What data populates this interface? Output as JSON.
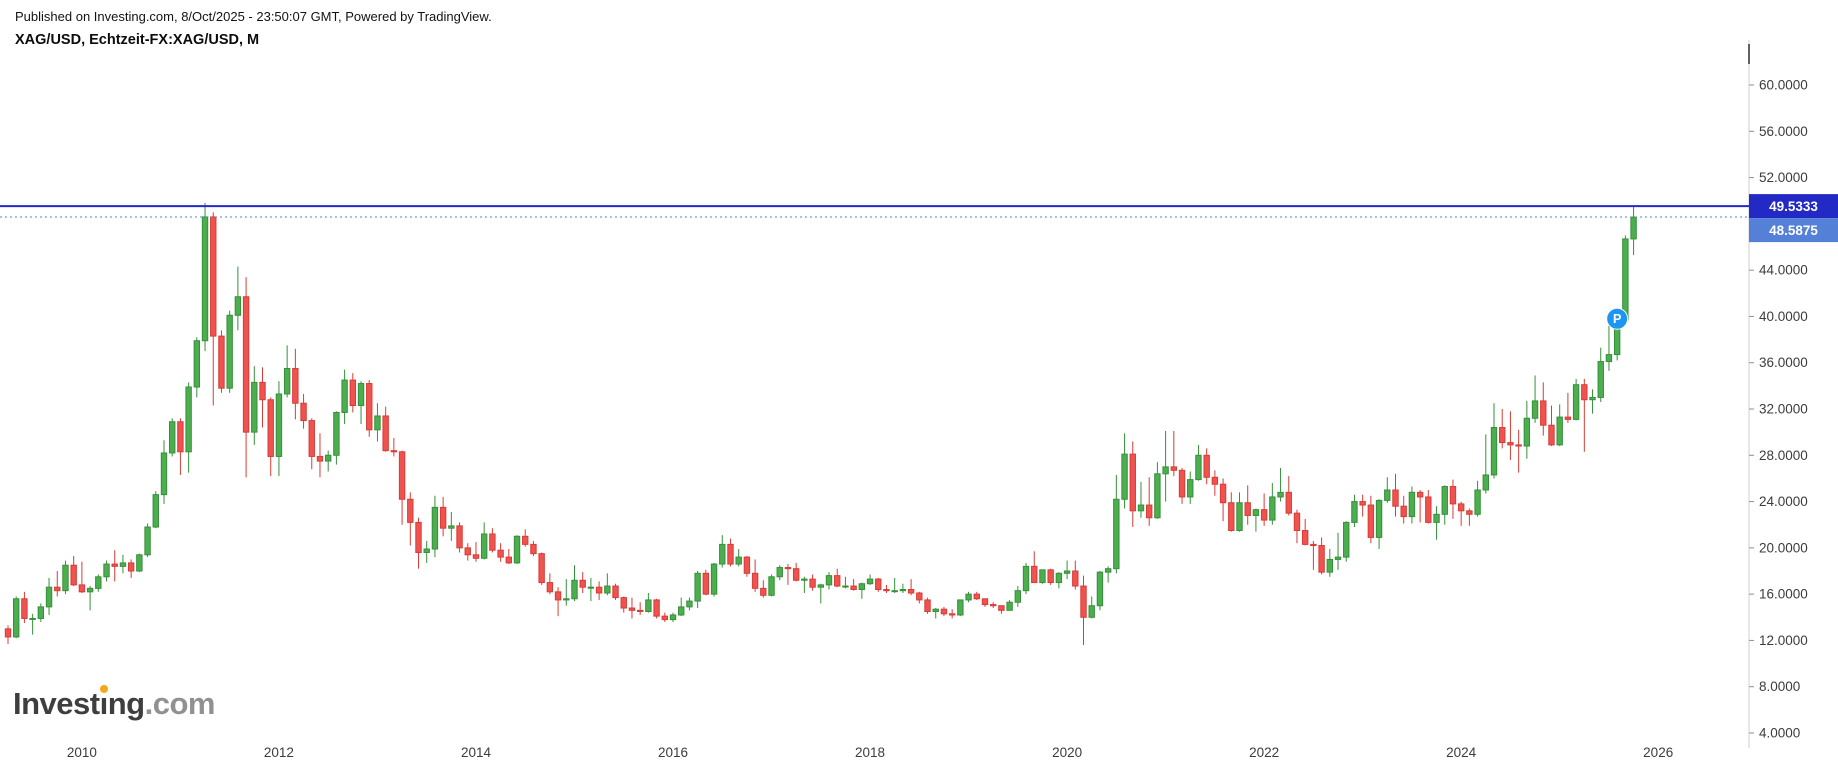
{
  "header": {
    "published_line": "Published on Investing.com, 8/Oct/2025 - 23:50:07 GMT, Powered by TradingView.",
    "symbol_line": "XAG/USD, Echtzeit-FX:XAG/USD, M"
  },
  "watermark": {
    "brand_pre": "Invest",
    "brand_i": "ı",
    "brand_post": "ng",
    "suffix": ".com",
    "dot_color": "#f7a61b"
  },
  "chart_data": {
    "type": "candlestick",
    "symbol": "XAG/USD",
    "feed": "Echtzeit-FX:XAG/USD",
    "timeframe": "M",
    "grid": false,
    "ylim": [
      4,
      62
    ],
    "y_ticks": [
      60,
      56,
      52,
      48,
      44,
      40,
      36,
      32,
      28,
      24,
      20,
      16,
      12,
      8,
      4
    ],
    "y_tick_decimals": 4,
    "x_tick_labels": [
      "2010",
      "2012",
      "2014",
      "2016",
      "2018",
      "2020",
      "2022",
      "2024",
      "2026"
    ],
    "up_color": "#4cae4f",
    "up_border": "#35903a",
    "down_color": "#ef5350",
    "down_border": "#d73c36",
    "axis_text_color": "#3c3c3c",
    "price_line": {
      "value": 49.5333,
      "label": "49.5333",
      "color": "#2329c5"
    },
    "current_price": {
      "value": 48.5875,
      "label": "48.5875",
      "color": "#5480d8"
    },
    "marker": {
      "label": "P",
      "month": "2025-08",
      "price": 39.8,
      "color": "#1e96f0"
    },
    "columns": [
      "month",
      "open",
      "high",
      "low",
      "close"
    ],
    "candles": [
      [
        "2009-04",
        13.0,
        13.3,
        11.7,
        12.3
      ],
      [
        "2009-05",
        12.3,
        15.8,
        12.2,
        15.6
      ],
      [
        "2009-06",
        15.6,
        16.2,
        13.5,
        13.9
      ],
      [
        "2009-07",
        13.9,
        14.3,
        12.5,
        13.9
      ],
      [
        "2009-08",
        13.9,
        15.2,
        13.6,
        14.9
      ],
      [
        "2009-09",
        14.9,
        17.4,
        14.2,
        16.6
      ],
      [
        "2009-10",
        16.6,
        18.0,
        15.8,
        16.3
      ],
      [
        "2009-11",
        16.3,
        18.9,
        16.0,
        18.5
      ],
      [
        "2009-12",
        18.5,
        19.3,
        16.7,
        16.8
      ],
      [
        "2010-01",
        16.8,
        18.8,
        16.1,
        16.2
      ],
      [
        "2010-02",
        16.2,
        16.7,
        14.6,
        16.5
      ],
      [
        "2010-03",
        16.5,
        17.7,
        16.2,
        17.5
      ],
      [
        "2010-04",
        17.5,
        18.9,
        17.1,
        18.6
      ],
      [
        "2010-05",
        18.6,
        19.8,
        17.1,
        18.4
      ],
      [
        "2010-06",
        18.4,
        19.4,
        17.8,
        18.7
      ],
      [
        "2010-07",
        18.7,
        19.0,
        17.4,
        18.0
      ],
      [
        "2010-08",
        18.0,
        19.5,
        17.9,
        19.4
      ],
      [
        "2010-09",
        19.4,
        22.1,
        19.2,
        21.8
      ],
      [
        "2010-10",
        21.8,
        24.9,
        21.7,
        24.6
      ],
      [
        "2010-11",
        24.6,
        29.3,
        23.8,
        28.2
      ],
      [
        "2010-12",
        28.2,
        31.2,
        27.9,
        30.9
      ],
      [
        "2011-01",
        30.9,
        31.2,
        26.3,
        28.3
      ],
      [
        "2011-02",
        28.3,
        34.3,
        26.5,
        33.9
      ],
      [
        "2011-03",
        33.9,
        38.2,
        33.0,
        37.9
      ],
      [
        "2011-04",
        37.9,
        49.8,
        37.0,
        48.6
      ],
      [
        "2011-05",
        48.6,
        49.0,
        32.3,
        38.3
      ],
      [
        "2011-06",
        38.3,
        38.8,
        33.4,
        33.8
      ],
      [
        "2011-07",
        33.8,
        40.5,
        33.4,
        40.1
      ],
      [
        "2011-08",
        40.1,
        44.3,
        38.8,
        41.7
      ],
      [
        "2011-09",
        41.7,
        43.4,
        26.1,
        30.0
      ],
      [
        "2011-10",
        30.0,
        35.7,
        28.9,
        34.3
      ],
      [
        "2011-11",
        34.3,
        35.6,
        30.4,
        32.8
      ],
      [
        "2011-12",
        32.8,
        33.0,
        26.2,
        27.9
      ],
      [
        "2012-01",
        27.9,
        34.4,
        26.2,
        33.3
      ],
      [
        "2012-02",
        33.3,
        37.5,
        33.0,
        35.5
      ],
      [
        "2012-03",
        35.5,
        37.2,
        31.1,
        32.5
      ],
      [
        "2012-04",
        32.5,
        33.3,
        30.3,
        31.0
      ],
      [
        "2012-05",
        31.0,
        31.2,
        26.8,
        27.9
      ],
      [
        "2012-06",
        27.9,
        29.9,
        26.1,
        27.5
      ],
      [
        "2012-07",
        27.5,
        28.4,
        26.6,
        28.0
      ],
      [
        "2012-08",
        28.0,
        31.8,
        27.2,
        31.7
      ],
      [
        "2012-09",
        31.7,
        35.4,
        30.7,
        34.5
      ],
      [
        "2012-10",
        34.5,
        35.1,
        31.7,
        32.3
      ],
      [
        "2012-11",
        32.3,
        34.4,
        30.7,
        34.2
      ],
      [
        "2012-12",
        34.2,
        34.5,
        29.6,
        30.2
      ],
      [
        "2013-01",
        30.2,
        32.5,
        29.2,
        31.4
      ],
      [
        "2013-02",
        31.4,
        32.2,
        28.3,
        28.4
      ],
      [
        "2013-03",
        28.4,
        29.5,
        27.9,
        28.3
      ],
      [
        "2013-04",
        28.3,
        28.4,
        22.0,
        24.2
      ],
      [
        "2013-05",
        24.2,
        24.8,
        20.2,
        22.2
      ],
      [
        "2013-06",
        22.2,
        22.6,
        18.2,
        19.6
      ],
      [
        "2013-07",
        19.6,
        20.6,
        18.7,
        19.9
      ],
      [
        "2013-08",
        19.9,
        24.5,
        19.2,
        23.5
      ],
      [
        "2013-09",
        23.5,
        24.4,
        21.0,
        21.7
      ],
      [
        "2013-10",
        21.7,
        23.1,
        20.6,
        21.9
      ],
      [
        "2013-11",
        21.9,
        22.2,
        19.6,
        20.0
      ],
      [
        "2013-12",
        20.0,
        20.4,
        18.9,
        19.4
      ],
      [
        "2014-01",
        19.4,
        20.5,
        18.8,
        19.1
      ],
      [
        "2014-02",
        19.1,
        22.2,
        19.0,
        21.2
      ],
      [
        "2014-03",
        21.2,
        21.7,
        19.6,
        19.8
      ],
      [
        "2014-04",
        19.8,
        20.4,
        18.8,
        19.2
      ],
      [
        "2014-05",
        19.2,
        19.9,
        18.6,
        18.7
      ],
      [
        "2014-06",
        18.7,
        21.1,
        18.6,
        21.0
      ],
      [
        "2014-07",
        21.0,
        21.6,
        20.1,
        20.3
      ],
      [
        "2014-08",
        20.3,
        20.6,
        19.3,
        19.5
      ],
      [
        "2014-09",
        19.5,
        19.6,
        16.8,
        17.0
      ],
      [
        "2014-10",
        17.0,
        17.8,
        16.0,
        16.2
      ],
      [
        "2014-11",
        16.2,
        16.6,
        14.1,
        15.5
      ],
      [
        "2014-12",
        15.5,
        17.3,
        15.0,
        15.6
      ],
      [
        "2015-01",
        15.6,
        18.5,
        15.4,
        17.2
      ],
      [
        "2015-02",
        17.2,
        17.9,
        16.1,
        16.6
      ],
      [
        "2015-03",
        16.6,
        17.4,
        15.4,
        16.6
      ],
      [
        "2015-04",
        16.6,
        17.1,
        15.5,
        16.1
      ],
      [
        "2015-05",
        16.1,
        17.8,
        15.9,
        16.7
      ],
      [
        "2015-06",
        16.7,
        16.9,
        15.5,
        15.7
      ],
      [
        "2015-07",
        15.7,
        15.8,
        14.4,
        14.8
      ],
      [
        "2015-08",
        14.8,
        15.7,
        13.9,
        14.6
      ],
      [
        "2015-09",
        14.6,
        15.3,
        14.2,
        14.5
      ],
      [
        "2015-10",
        14.5,
        16.1,
        14.4,
        15.5
      ],
      [
        "2015-11",
        15.5,
        15.6,
        13.9,
        14.1
      ],
      [
        "2015-12",
        14.1,
        14.4,
        13.6,
        13.8
      ],
      [
        "2016-01",
        13.8,
        14.4,
        13.6,
        14.2
      ],
      [
        "2016-02",
        14.2,
        15.7,
        14.1,
        14.9
      ],
      [
        "2016-03",
        14.9,
        15.7,
        14.6,
        15.4
      ],
      [
        "2016-04",
        15.4,
        18.0,
        14.8,
        17.8
      ],
      [
        "2016-05",
        17.8,
        18.1,
        15.9,
        16.0
      ],
      [
        "2016-06",
        16.0,
        18.7,
        15.8,
        18.6
      ],
      [
        "2016-07",
        18.6,
        21.1,
        18.3,
        20.3
      ],
      [
        "2016-08",
        20.3,
        20.8,
        18.4,
        18.6
      ],
      [
        "2016-09",
        18.6,
        19.9,
        18.4,
        19.2
      ],
      [
        "2016-10",
        19.2,
        19.3,
        17.5,
        17.8
      ],
      [
        "2016-11",
        17.8,
        19.0,
        16.2,
        16.5
      ],
      [
        "2016-12",
        16.5,
        17.2,
        15.7,
        15.9
      ],
      [
        "2017-01",
        15.9,
        17.7,
        15.8,
        17.5
      ],
      [
        "2017-02",
        17.5,
        18.5,
        17.2,
        18.3
      ],
      [
        "2017-03",
        18.3,
        18.6,
        16.8,
        18.2
      ],
      [
        "2017-04",
        18.2,
        18.7,
        17.1,
        17.2
      ],
      [
        "2017-05",
        17.2,
        17.5,
        16.1,
        17.3
      ],
      [
        "2017-06",
        17.3,
        17.7,
        16.3,
        16.6
      ],
      [
        "2017-07",
        16.6,
        16.9,
        15.2,
        16.8
      ],
      [
        "2017-08",
        16.8,
        17.9,
        16.4,
        17.6
      ],
      [
        "2017-09",
        17.6,
        18.2,
        16.6,
        16.7
      ],
      [
        "2017-10",
        16.7,
        17.5,
        16.5,
        16.7
      ],
      [
        "2017-11",
        16.7,
        17.3,
        16.3,
        16.4
      ],
      [
        "2017-12",
        16.4,
        17.0,
        15.6,
        16.9
      ],
      [
        "2018-01",
        16.9,
        17.7,
        16.8,
        17.3
      ],
      [
        "2018-02",
        17.3,
        17.4,
        16.2,
        16.4
      ],
      [
        "2018-03",
        16.4,
        16.8,
        16.1,
        16.3
      ],
      [
        "2018-04",
        16.3,
        17.4,
        16.1,
        16.3
      ],
      [
        "2018-05",
        16.3,
        16.9,
        16.1,
        16.4
      ],
      [
        "2018-06",
        16.4,
        17.3,
        15.9,
        16.1
      ],
      [
        "2018-07",
        16.1,
        16.2,
        15.2,
        15.5
      ],
      [
        "2018-08",
        15.5,
        15.7,
        14.3,
        14.5
      ],
      [
        "2018-09",
        14.5,
        14.8,
        13.9,
        14.7
      ],
      [
        "2018-10",
        14.7,
        14.9,
        14.1,
        14.3
      ],
      [
        "2018-11",
        14.3,
        14.7,
        13.9,
        14.2
      ],
      [
        "2018-12",
        14.2,
        15.5,
        14.1,
        15.5
      ],
      [
        "2019-01",
        15.5,
        16.2,
        15.3,
        16.0
      ],
      [
        "2019-02",
        16.0,
        16.2,
        15.5,
        15.6
      ],
      [
        "2019-03",
        15.6,
        15.6,
        14.9,
        15.1
      ],
      [
        "2019-04",
        15.1,
        15.3,
        14.8,
        15.0
      ],
      [
        "2019-05",
        15.0,
        15.0,
        14.3,
        14.6
      ],
      [
        "2019-06",
        14.6,
        15.5,
        14.6,
        15.3
      ],
      [
        "2019-07",
        15.3,
        16.7,
        14.9,
        16.3
      ],
      [
        "2019-08",
        16.3,
        18.7,
        16.0,
        18.4
      ],
      [
        "2019-09",
        18.4,
        19.7,
        17.0,
        17.0
      ],
      [
        "2019-10",
        17.0,
        18.1,
        16.9,
        18.1
      ],
      [
        "2019-11",
        18.1,
        18.2,
        16.8,
        17.0
      ],
      [
        "2019-12",
        17.0,
        17.9,
        16.5,
        17.8
      ],
      [
        "2020-01",
        17.8,
        18.9,
        17.3,
        18.0
      ],
      [
        "2020-02",
        18.0,
        18.9,
        16.4,
        16.7
      ],
      [
        "2020-03",
        16.7,
        17.6,
        11.6,
        14.0
      ],
      [
        "2020-04",
        14.0,
        15.8,
        13.9,
        15.0
      ],
      [
        "2020-05",
        15.0,
        18.0,
        14.6,
        17.9
      ],
      [
        "2020-06",
        17.9,
        18.4,
        17.0,
        18.2
      ],
      [
        "2020-07",
        18.2,
        26.3,
        17.8,
        24.2
      ],
      [
        "2020-08",
        24.2,
        29.9,
        23.4,
        28.1
      ],
      [
        "2020-09",
        28.1,
        29.2,
        21.8,
        23.2
      ],
      [
        "2020-10",
        23.2,
        25.7,
        22.6,
        23.7
      ],
      [
        "2020-11",
        23.7,
        26.1,
        21.9,
        22.6
      ],
      [
        "2020-12",
        22.6,
        27.4,
        22.5,
        26.4
      ],
      [
        "2021-01",
        26.4,
        30.1,
        24.0,
        27.0
      ],
      [
        "2021-02",
        27.0,
        30.1,
        26.2,
        26.7
      ],
      [
        "2021-03",
        26.7,
        26.9,
        23.8,
        24.4
      ],
      [
        "2021-04",
        24.4,
        26.6,
        23.8,
        25.9
      ],
      [
        "2021-05",
        25.9,
        28.9,
        25.8,
        28.0
      ],
      [
        "2021-06",
        28.0,
        28.6,
        25.5,
        26.1
      ],
      [
        "2021-07",
        26.1,
        26.7,
        24.5,
        25.5
      ],
      [
        "2021-08",
        25.5,
        26.0,
        22.3,
        23.9
      ],
      [
        "2021-09",
        23.9,
        24.8,
        21.4,
        21.5
      ],
      [
        "2021-10",
        21.5,
        24.8,
        21.4,
        23.9
      ],
      [
        "2021-11",
        23.9,
        25.4,
        22.0,
        22.8
      ],
      [
        "2021-12",
        22.8,
        23.4,
        21.4,
        23.3
      ],
      [
        "2022-01",
        23.3,
        24.7,
        21.9,
        22.4
      ],
      [
        "2022-02",
        22.4,
        25.6,
        22.0,
        24.4
      ],
      [
        "2022-03",
        24.4,
        26.9,
        24.0,
        24.8
      ],
      [
        "2022-04",
        24.8,
        26.2,
        22.8,
        23.0
      ],
      [
        "2022-05",
        23.0,
        23.3,
        20.4,
        21.5
      ],
      [
        "2022-06",
        21.5,
        22.5,
        20.2,
        20.3
      ],
      [
        "2022-07",
        20.3,
        20.6,
        18.1,
        20.2
      ],
      [
        "2022-08",
        20.2,
        20.9,
        17.7,
        17.9
      ],
      [
        "2022-09",
        17.9,
        19.9,
        17.5,
        19.0
      ],
      [
        "2022-10",
        19.0,
        21.3,
        18.1,
        19.2
      ],
      [
        "2022-11",
        19.2,
        22.3,
        18.8,
        22.2
      ],
      [
        "2022-12",
        22.2,
        24.6,
        21.8,
        24.0
      ],
      [
        "2023-01",
        24.0,
        24.6,
        22.7,
        23.7
      ],
      [
        "2023-02",
        23.7,
        24.5,
        20.4,
        20.9
      ],
      [
        "2023-03",
        20.9,
        24.2,
        19.9,
        24.1
      ],
      [
        "2023-04",
        24.1,
        26.1,
        23.9,
        25.0
      ],
      [
        "2023-05",
        25.0,
        26.4,
        22.7,
        23.6
      ],
      [
        "2023-06",
        23.6,
        24.5,
        22.1,
        22.7
      ],
      [
        "2023-07",
        22.7,
        25.3,
        22.1,
        24.8
      ],
      [
        "2023-08",
        24.8,
        25.0,
        22.2,
        24.4
      ],
      [
        "2023-09",
        24.4,
        25.0,
        22.1,
        22.2
      ],
      [
        "2023-10",
        22.2,
        23.6,
        20.7,
        22.9
      ],
      [
        "2023-11",
        22.9,
        25.4,
        22.0,
        25.3
      ],
      [
        "2023-12",
        25.3,
        25.9,
        22.5,
        23.8
      ],
      [
        "2024-01",
        23.8,
        24.0,
        21.9,
        23.2
      ],
      [
        "2024-02",
        23.2,
        23.4,
        21.9,
        22.9
      ],
      [
        "2024-03",
        22.9,
        25.8,
        22.7,
        25.0
      ],
      [
        "2024-04",
        25.0,
        29.8,
        24.7,
        26.3
      ],
      [
        "2024-05",
        26.3,
        32.5,
        26.0,
        30.4
      ],
      [
        "2024-06",
        30.4,
        32.0,
        28.6,
        29.1
      ],
      [
        "2024-07",
        29.1,
        31.8,
        27.6,
        28.9
      ],
      [
        "2024-08",
        28.9,
        30.2,
        26.5,
        28.8
      ],
      [
        "2024-09",
        28.8,
        32.7,
        27.7,
        31.2
      ],
      [
        "2024-10",
        31.2,
        34.9,
        30.8,
        32.7
      ],
      [
        "2024-11",
        32.7,
        34.3,
        29.7,
        30.6
      ],
      [
        "2024-12",
        30.6,
        32.3,
        28.8,
        28.9
      ],
      [
        "2025-01",
        28.9,
        32.4,
        28.8,
        31.3
      ],
      [
        "2025-02",
        31.3,
        33.4,
        30.8,
        31.1
      ],
      [
        "2025-03",
        31.1,
        34.6,
        31.0,
        34.1
      ],
      [
        "2025-04",
        34.1,
        34.6,
        28.3,
        32.8
      ],
      [
        "2025-05",
        32.8,
        33.7,
        31.6,
        33.0
      ],
      [
        "2025-06",
        33.0,
        37.3,
        32.6,
        36.1
      ],
      [
        "2025-07",
        36.1,
        39.5,
        35.3,
        36.7
      ],
      [
        "2025-08",
        36.7,
        39.8,
        36.2,
        39.7
      ],
      [
        "2025-09",
        39.7,
        47.0,
        39.5,
        46.7
      ],
      [
        "2025-10",
        46.7,
        49.5333,
        45.3,
        48.5875
      ]
    ]
  }
}
